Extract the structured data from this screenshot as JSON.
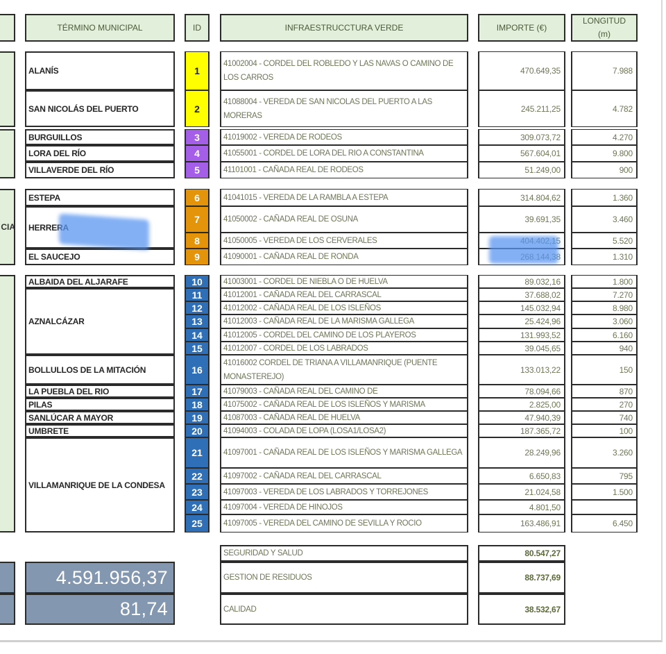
{
  "headers": {
    "termino": "TÉRMINO MUNICIPAL",
    "id": "ID",
    "infra": "INFRAESTRUCCTURA VERDE",
    "importe": "IMPORTE (€)",
    "longitud": "LONGITUD (m)"
  },
  "side_labels": [
    "CIA"
  ],
  "groups": [
    {
      "color": "#ffff00",
      "id_text_color": "#222222",
      "municipios": [
        {
          "name": "ALANÍS",
          "ids": [
            1
          ]
        },
        {
          "name": "SAN NICOLÁS DEL PUERTO",
          "ids": [
            2
          ]
        }
      ],
      "rows": [
        {
          "id": "1",
          "infra": "41002004 - CORDEL DEL ROBLEDO Y LAS NAVAS O CAMINO DE LOS CARROS",
          "importe": "470.649,35",
          "longitud": "7.988"
        },
        {
          "id": "2",
          "infra": "41088004 - VEREDA DE SAN NICOLAS DEL PUERTO A LAS MORERAS",
          "importe": "245.211,25",
          "longitud": "4.782"
        }
      ]
    },
    {
      "color": "#a45ee8",
      "id_text_color": "#ffffff",
      "municipios": [
        {
          "name": "BURGUILLOS",
          "ids": [
            3
          ]
        },
        {
          "name": "LORA DEL RÍO",
          "ids": [
            4
          ]
        },
        {
          "name": "VILLAVERDE DEL RÍO",
          "ids": [
            5
          ]
        }
      ],
      "rows": [
        {
          "id": "3",
          "infra": "41019002 - VEREDA DE RODEOS",
          "importe": "309.073,72",
          "longitud": "4.270"
        },
        {
          "id": "4",
          "infra": "41055001 - CORDEL DE LORA DEL RIO A CONSTANTINA",
          "importe": "567.604,01",
          "longitud": "9.800"
        },
        {
          "id": "5",
          "infra": "41101001 - CAÑADA REAL DE RODEOS",
          "importe": "51.249,00",
          "longitud": "900"
        }
      ]
    },
    {
      "color": "#e3940b",
      "id_text_color": "#ffffff",
      "municipios": [
        {
          "name": "ESTEPA",
          "ids": [
            6
          ]
        },
        {
          "name": "HERRERA",
          "ids": [
            7,
            8
          ]
        },
        {
          "name": "EL SAUCEJO",
          "ids": [
            9
          ]
        }
      ],
      "rows": [
        {
          "id": "6",
          "infra": "41041015 - VEREDA DE LA RAMBLA A ESTEPA",
          "importe": "314.804,62",
          "longitud": "1.360"
        },
        {
          "id": "7",
          "infra": "41050002 - CAÑADA REAL DE OSUNA",
          "importe": "39.691,35",
          "longitud": "3.460"
        },
        {
          "id": "8",
          "infra": "41050005 - VEREDA DE LOS CERVERALES",
          "importe": "404.402,15",
          "longitud": "5.520"
        },
        {
          "id": "9",
          "infra": "41090001 - CAÑADA REAL DE RONDA",
          "importe": "268.144,38",
          "longitud": "1.310"
        }
      ]
    },
    {
      "color": "#2f6fb8",
      "id_text_color": "#ffffff",
      "municipios": [
        {
          "name": "ALBAIDA DEL ALJARAFE",
          "ids": [
            10
          ]
        },
        {
          "name": "AZNALCÁZAR",
          "ids": [
            11,
            12,
            13,
            14,
            15
          ]
        },
        {
          "name": "BOLLULLOS DE LA MITACIÓN",
          "ids": [
            16
          ]
        },
        {
          "name": "LA PUEBLA DEL RIO",
          "ids": [
            17
          ]
        },
        {
          "name": "PILAS",
          "ids": [
            18
          ]
        },
        {
          "name": "SANLÚCAR A MAYOR",
          "ids": [
            19
          ]
        },
        {
          "name": "UMBRETE",
          "ids": [
            20
          ]
        },
        {
          "name": "VILLAMANRIQUE DE LA CONDESA",
          "ids": [
            21,
            22,
            23,
            24,
            25
          ]
        }
      ],
      "rows": [
        {
          "id": "10",
          "infra": "41003001 - CORDEL DE NIEBLA O DE HUELVA",
          "importe": "89.032,16",
          "longitud": "1.800"
        },
        {
          "id": "11",
          "infra": "41012001 - CAÑADA REAL DEL CARRASCAL",
          "importe": "37.688,02",
          "longitud": "7.270"
        },
        {
          "id": "12",
          "infra": "41012002 - CAÑADA REAL DE LOS ISLEÑOS",
          "importe": "145.032,94",
          "longitud": "8.980"
        },
        {
          "id": "13",
          "infra": "41012003 - CAÑADA REAL DE LA MARISMA GALLEGA",
          "importe": "25.424,96",
          "longitud": "3.060"
        },
        {
          "id": "14",
          "infra": "41012005 - CORDEL DEL CAMINO DE LOS PLAYEROS",
          "importe": "131.993,52",
          "longitud": "6.160"
        },
        {
          "id": "15",
          "infra": "41012007 - CORDEL DE LOS LABRADOS",
          "importe": "39.045,65",
          "longitud": "940"
        },
        {
          "id": "16",
          "infra": "41016002 CORDEL DE TRIANA A VILLAMANRIQUE (PUENTE MONASTEREJO)",
          "importe": "133.013,22",
          "longitud": "150"
        },
        {
          "id": "17",
          "infra": "41079003 - CAÑADA REAL DEL CAMINO DE",
          "importe": "78.094,66",
          "longitud": "870"
        },
        {
          "id": "18",
          "infra": "41075002 - CAÑADA REAL DE LOS ISLEÑOS Y MARISMA",
          "importe": "2.825,00",
          "longitud": "270"
        },
        {
          "id": "19",
          "infra": "41087003 - CAÑADA REAL DE HUELVA",
          "importe": "47.940,39",
          "longitud": "740"
        },
        {
          "id": "20",
          "infra": "41094003 - COLADA DE LOPA (LOSA1/LOSA2)",
          "importe": "187.365,72",
          "longitud": "100"
        },
        {
          "id": "21",
          "infra": "41097001 - CAÑADA REAL DE LOS ISLEÑOS Y MARISMA GALLEGA",
          "importe": "28.249,96",
          "longitud": "3.260"
        },
        {
          "id": "22",
          "infra": "41097002 - CAÑADA REAL DEL CARRASCAL",
          "importe": "6.650,83",
          "longitud": "795"
        },
        {
          "id": "23",
          "infra": "41097003 - VEREDA DE LOS LABRADOS Y TORREJONES",
          "importe": "21.024,58",
          "longitud": "1.500"
        },
        {
          "id": "24",
          "infra": "41097004 - VEREDA DE HINOJOS",
          "importe": "4.801,50",
          "longitud": ""
        },
        {
          "id": "25",
          "infra": "41097005 - VEREDA DEL CAMINO DE SEVILLA Y ROCIO",
          "importe": "163.486,91",
          "longitud": "6.450"
        }
      ]
    }
  ],
  "extras": [
    {
      "label": "SEGURIDAD Y SALUD",
      "importe": "80.547,27"
    },
    {
      "label": "GESTION DE RESIDUOS",
      "importe": "88.737,69"
    },
    {
      "label": "CALIDAD",
      "importe": "38.532,67"
    }
  ],
  "totals": {
    "total_importe": "4.591.956,37",
    "total_longitud_km": "81,74"
  },
  "colors": {
    "header_bg": "#e2efda",
    "total_bg": "#8497b0",
    "redaction_highlight": "#5a96f0"
  }
}
